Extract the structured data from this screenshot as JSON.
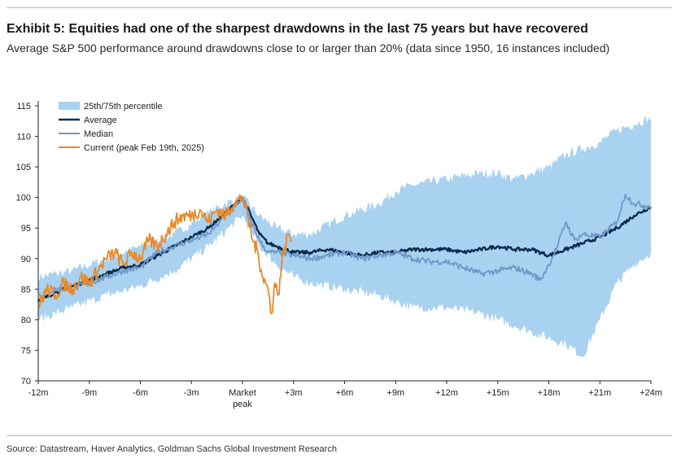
{
  "header": {
    "title": "Exhibit 5: Equities had one of the sharpest drawdowns in the last 75 years but have recovered",
    "subtitle": "Average S&P 500 performance around drawdowns close to or larger than 20% (data since 1950, 16 instances included)"
  },
  "footer": {
    "source": "Source: Datastream, Haver Analytics, Goldman Sachs Global Investment Research"
  },
  "colors": {
    "band": "#a9d2f0",
    "average": "#0d2b4e",
    "median": "#6f97c7",
    "current": "#e8892b"
  },
  "chart_data": {
    "type": "line",
    "title": "Exhibit 5: Equities had one of the sharpest drawdowns in the last 75 years but have recovered",
    "xlabel": "",
    "ylabel": "",
    "xlim": [
      -12,
      24
    ],
    "ylim": [
      70,
      115
    ],
    "yticks": [
      70,
      75,
      80,
      85,
      90,
      95,
      100,
      105,
      110,
      115
    ],
    "xticks": [
      {
        "value": -12,
        "label": "-12m"
      },
      {
        "value": -9,
        "label": "-9m"
      },
      {
        "value": -6,
        "label": "-6m"
      },
      {
        "value": -3,
        "label": "-3m"
      },
      {
        "value": 0,
        "label": "Market"
      },
      {
        "value": 3,
        "label": "+3m"
      },
      {
        "value": 6,
        "label": "+6m"
      },
      {
        "value": 9,
        "label": "+9m"
      },
      {
        "value": 12,
        "label": "+12m"
      },
      {
        "value": 15,
        "label": "+15m"
      },
      {
        "value": 18,
        "label": "+18m"
      },
      {
        "value": 21,
        "label": "+21m"
      },
      {
        "value": 24,
        "label": "+24m"
      }
    ],
    "xtick_sublabel": "peak",
    "legend_position": "top-left",
    "legend": [
      "25th/75th percentile",
      "Average",
      "Median",
      "Current (peak Feb 19th, 2025)"
    ],
    "band": {
      "name": "25th/75th percentile",
      "x": [
        -12,
        -10,
        -8,
        -6,
        -4,
        -2,
        -1,
        0,
        1,
        2,
        3,
        4,
        6,
        8,
        9,
        10,
        12,
        14,
        15,
        16,
        17,
        18,
        19,
        20,
        21,
        22,
        23,
        24
      ],
      "lower": [
        80,
        82,
        84,
        85.5,
        88,
        92,
        94.5,
        97,
        92,
        89,
        87,
        86,
        85,
        84,
        83,
        82,
        82,
        81,
        80,
        79,
        78,
        77,
        76,
        74,
        80,
        86,
        89,
        91
      ],
      "upper": [
        87,
        88,
        90,
        92,
        94,
        97.5,
        99,
        100,
        97,
        95,
        94,
        94,
        97,
        99,
        101,
        102,
        103,
        104,
        104,
        103,
        104,
        105,
        107,
        108,
        109,
        111,
        112,
        113
      ]
    },
    "series": [
      {
        "name": "Average",
        "x": [
          -12,
          -11,
          -10,
          -9,
          -8,
          -7,
          -6,
          -5,
          -4,
          -3,
          -2,
          -1,
          0,
          0.5,
          1,
          1.5,
          2,
          3,
          4,
          5,
          6,
          7,
          8,
          9,
          10,
          11,
          12,
          13,
          14,
          15,
          16,
          17,
          18,
          19,
          20,
          21,
          22,
          23,
          24
        ],
        "y": [
          83,
          84.5,
          85.5,
          86.5,
          87.5,
          88.5,
          89,
          90.5,
          92,
          93.5,
          95,
          97.5,
          100,
          97,
          94,
          92.5,
          92,
          91,
          91,
          91.5,
          91,
          90.5,
          91,
          91,
          91.5,
          91.5,
          91.5,
          91,
          91.5,
          92,
          91.5,
          91.5,
          90.5,
          91.5,
          92.5,
          93.5,
          95,
          97,
          98.5
        ]
      },
      {
        "name": "Median",
        "x": [
          -12,
          -11,
          -10,
          -9,
          -8,
          -7,
          -6,
          -5,
          -4,
          -3,
          -2,
          -1,
          0,
          0.5,
          1,
          1.5,
          2,
          3,
          4,
          5,
          6,
          7,
          8,
          9,
          10,
          11,
          12,
          13,
          14,
          15,
          16,
          17,
          17.5,
          18,
          18.5,
          19,
          19.5,
          20,
          21,
          22,
          22.5,
          23,
          24
        ],
        "y": [
          84,
          85,
          85,
          86,
          87,
          88,
          88.5,
          91,
          92,
          93,
          94,
          97,
          100,
          96,
          93,
          91,
          91,
          90.5,
          90,
          90.5,
          91,
          90,
          90.5,
          91,
          90,
          89.5,
          89.5,
          88.5,
          87.5,
          88,
          88.5,
          87.5,
          86.5,
          89,
          92,
          96,
          93,
          94,
          93.5,
          96,
          100.5,
          99,
          98.5
        ]
      },
      {
        "name": "Current (peak Feb 19th, 2025)",
        "x": [
          -12,
          -11.5,
          -11,
          -10.5,
          -10,
          -9.5,
          -9,
          -8.5,
          -8,
          -7.5,
          -7,
          -6.5,
          -6,
          -5.5,
          -5,
          -4.5,
          -4,
          -3.5,
          -3,
          -2.5,
          -2,
          -1.5,
          -1,
          -0.5,
          0,
          0.3,
          0.6,
          0.9,
          1.2,
          1.5,
          1.7,
          1.9,
          2.1,
          2.3,
          2.5,
          2.7,
          2.9
        ],
        "y": [
          82,
          85,
          84,
          86,
          85,
          87,
          86,
          88,
          90,
          91,
          89,
          91,
          90,
          93,
          92,
          94,
          96,
          97,
          97,
          98,
          96,
          98,
          97,
          99,
          100,
          97,
          93,
          91,
          87,
          85,
          81,
          86,
          84,
          89,
          92,
          94,
          93
        ]
      }
    ]
  }
}
